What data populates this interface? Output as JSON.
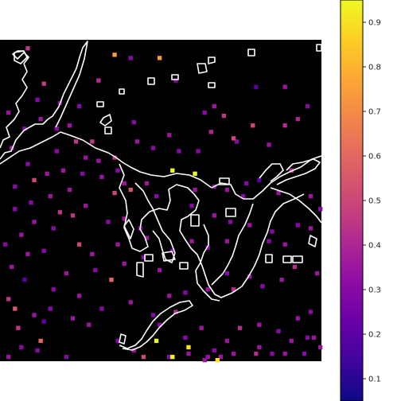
{
  "chart_data": {
    "type": "heatmap",
    "title": "",
    "xlabel": "",
    "ylabel": "",
    "background_color": "#000000",
    "contour_color": "#ffffff",
    "colormap": "plasma",
    "colorbar": {
      "range": [
        0.05,
        0.95
      ],
      "ticks": [
        0.1,
        0.2,
        0.3,
        0.4,
        0.5,
        0.6,
        0.7,
        0.8,
        0.9
      ],
      "tick_labels": [
        "0.1",
        "0.2",
        "0.3",
        "0.4",
        "0.5",
        "0.6",
        "0.7",
        "0.8",
        "0.9"
      ]
    },
    "grid": false,
    "legend": "none",
    "axes_visible": false,
    "notes_on_units": "points given as column/row indices on a 100x100 grid (row 0 = top)",
    "points": [
      [
        8,
        2,
        0.45
      ],
      [
        35,
        4,
        0.74
      ],
      [
        49,
        5,
        0.74
      ],
      [
        54,
        12,
        0.3
      ],
      [
        40,
        5,
        0.3
      ],
      [
        30,
        12,
        0.42
      ],
      [
        13,
        13,
        0.47
      ],
      [
        11,
        18,
        0.3
      ],
      [
        18,
        19,
        0.3
      ],
      [
        24,
        20,
        0.3
      ],
      [
        63,
        22,
        0.3
      ],
      [
        66,
        20,
        0.35
      ],
      [
        79,
        14,
        0.2
      ],
      [
        88,
        14,
        0.35
      ],
      [
        95,
        20,
        0.3
      ],
      [
        92,
        24,
        0.4
      ],
      [
        78,
        26,
        0.5
      ],
      [
        69,
        23,
        0.45
      ],
      [
        73,
        31,
        0.3
      ],
      [
        83,
        32,
        0.35
      ],
      [
        88,
        26,
        0.42
      ],
      [
        21,
        26,
        0.35
      ],
      [
        28,
        31,
        0.45
      ],
      [
        17,
        34,
        0.3
      ],
      [
        14,
        41,
        0.35
      ],
      [
        10,
        43,
        0.5
      ],
      [
        30,
        37,
        0.35
      ],
      [
        35,
        36,
        0.45
      ],
      [
        42,
        31,
        0.35
      ],
      [
        47,
        33,
        0.3
      ],
      [
        52,
        29,
        0.35
      ],
      [
        55,
        34,
        0.3
      ],
      [
        53,
        40,
        0.95
      ],
      [
        60,
        41,
        0.95
      ],
      [
        61,
        34,
        0.3
      ],
      [
        65,
        28,
        0.4
      ],
      [
        72,
        30,
        0.5
      ],
      [
        76,
        44,
        0.3
      ],
      [
        80,
        43,
        0.2
      ],
      [
        86,
        47,
        0.35
      ],
      [
        90,
        40,
        0.42
      ],
      [
        4,
        45,
        0.3
      ],
      [
        9,
        50,
        0.3
      ],
      [
        15,
        48,
        0.35
      ],
      [
        21,
        46,
        0.35
      ],
      [
        18,
        53,
        0.45
      ],
      [
        22,
        54,
        0.45
      ],
      [
        26,
        51,
        0.35
      ],
      [
        35,
        47,
        0.5
      ],
      [
        40,
        46,
        0.55
      ],
      [
        59,
        51,
        0.3
      ],
      [
        66,
        54,
        0.35
      ],
      [
        71,
        56,
        0.3
      ],
      [
        77,
        57,
        0.35
      ],
      [
        84,
        59,
        0.3
      ],
      [
        33,
        56,
        0.3
      ],
      [
        38,
        55,
        0.35
      ],
      [
        43,
        58,
        0.3
      ],
      [
        36,
        63,
        0.35
      ],
      [
        45,
        61,
        0.35
      ],
      [
        6,
        60,
        0.35
      ],
      [
        8,
        66,
        0.35
      ],
      [
        13,
        65,
        0.3
      ],
      [
        24,
        63,
        0.5
      ],
      [
        28,
        66,
        0.35
      ],
      [
        29,
        71,
        0.3
      ],
      [
        20,
        72,
        0.35
      ],
      [
        24,
        79,
        0.35
      ],
      [
        16,
        77,
        0.3
      ],
      [
        7,
        74,
        0.2
      ],
      [
        2,
        80,
        0.45
      ],
      [
        4,
        83,
        0.55
      ],
      [
        5,
        89,
        0.45
      ],
      [
        10,
        85,
        0.35
      ],
      [
        15,
        83,
        0.3
      ],
      [
        22,
        86,
        0.35
      ],
      [
        27,
        88,
        0.35
      ],
      [
        31,
        83,
        0.3
      ],
      [
        34,
        74,
        0.6
      ],
      [
        38,
        69,
        0.35
      ],
      [
        40,
        81,
        0.35
      ],
      [
        47,
        85,
        0.3
      ],
      [
        52,
        79,
        0.35
      ],
      [
        57,
        78,
        0.3
      ],
      [
        64,
        77,
        0.35
      ],
      [
        70,
        72,
        0.3
      ],
      [
        72,
        77,
        0.42
      ],
      [
        77,
        73,
        0.35
      ],
      [
        81,
        76,
        0.3
      ],
      [
        87,
        74,
        0.35
      ],
      [
        91,
        70,
        0.42
      ],
      [
        92,
        86,
        0.35
      ],
      [
        96,
        84,
        0.3
      ],
      [
        98,
        72,
        0.35
      ],
      [
        49,
        88,
        0.3
      ],
      [
        54,
        84,
        0.42
      ],
      [
        57,
        92,
        0.3
      ],
      [
        62,
        89,
        0.35
      ],
      [
        66,
        96,
        0.3
      ],
      [
        70,
        93,
        0.35
      ],
      [
        74,
        89,
        0.42
      ],
      [
        80,
        88,
        0.35
      ],
      [
        86,
        90,
        0.3
      ],
      [
        90,
        93,
        0.35
      ],
      [
        95,
        92,
        0.3
      ],
      [
        99,
        95,
        0.35
      ],
      [
        20,
        98,
        0.3
      ],
      [
        11,
        96,
        0.3
      ],
      [
        6,
        95,
        0.3
      ],
      [
        2,
        98,
        0.35
      ],
      [
        36,
        93,
        0.3
      ],
      [
        41,
        96,
        0.35
      ],
      [
        44,
        98,
        0.5
      ],
      [
        52,
        98,
        0.3
      ],
      [
        58,
        97,
        0.35
      ],
      [
        63,
        99,
        0.35
      ],
      [
        68,
        98,
        0.35
      ],
      [
        72,
        97,
        0.35
      ],
      [
        79,
        97,
        0.42
      ],
      [
        84,
        97,
        0.3
      ],
      [
        12,
        93,
        0.6
      ],
      [
        13,
        87,
        0.2
      ],
      [
        48,
        93,
        0.95
      ],
      [
        53,
        98,
        0.95
      ],
      [
        58,
        95,
        0.9
      ],
      [
        64,
        98,
        0.35
      ],
      [
        67,
        99,
        0.9
      ],
      [
        80,
        95,
        0.35
      ],
      [
        88,
        97,
        0.35
      ],
      [
        94,
        97,
        0.3
      ],
      [
        97,
        92,
        0.35
      ],
      [
        41,
        25,
        0.3
      ],
      [
        45,
        44,
        0.35
      ],
      [
        48,
        48,
        0.3
      ],
      [
        60,
        46,
        0.35
      ],
      [
        66,
        45,
        0.3
      ],
      [
        70,
        46,
        0.35
      ],
      [
        75,
        48,
        0.3
      ],
      [
        83,
        62,
        0.3
      ],
      [
        88,
        63,
        0.35
      ],
      [
        92,
        57,
        0.3
      ],
      [
        96,
        58,
        0.35
      ],
      [
        99,
        52,
        0.3
      ],
      [
        96,
        48,
        0.35
      ],
      [
        70,
        62,
        0.35
      ],
      [
        64,
        64,
        0.3
      ],
      [
        59,
        62,
        0.35
      ],
      [
        53,
        65,
        0.3
      ],
      [
        49,
        71,
        0.35
      ],
      [
        44,
        67,
        0.3
      ],
      [
        16,
        58,
        0.3
      ],
      [
        10,
        56,
        0.35
      ],
      [
        4,
        52,
        0.3
      ],
      [
        1,
        63,
        0.3
      ],
      [
        3,
        70,
        0.35
      ],
      [
        31,
        42,
        0.35
      ],
      [
        25,
        41,
        0.3
      ],
      [
        19,
        40,
        0.35
      ],
      [
        8,
        38,
        0.3
      ],
      [
        3,
        33,
        0.35
      ],
      [
        7,
        27,
        0.3
      ],
      [
        2,
        22,
        0.35
      ],
      [
        12,
        24,
        0.35
      ],
      [
        17,
        27,
        0.3
      ],
      [
        23,
        31,
        0.45
      ],
      [
        26,
        36,
        0.35
      ],
      [
        36,
        40,
        0.3
      ],
      [
        38,
        44,
        0.35
      ]
    ]
  }
}
